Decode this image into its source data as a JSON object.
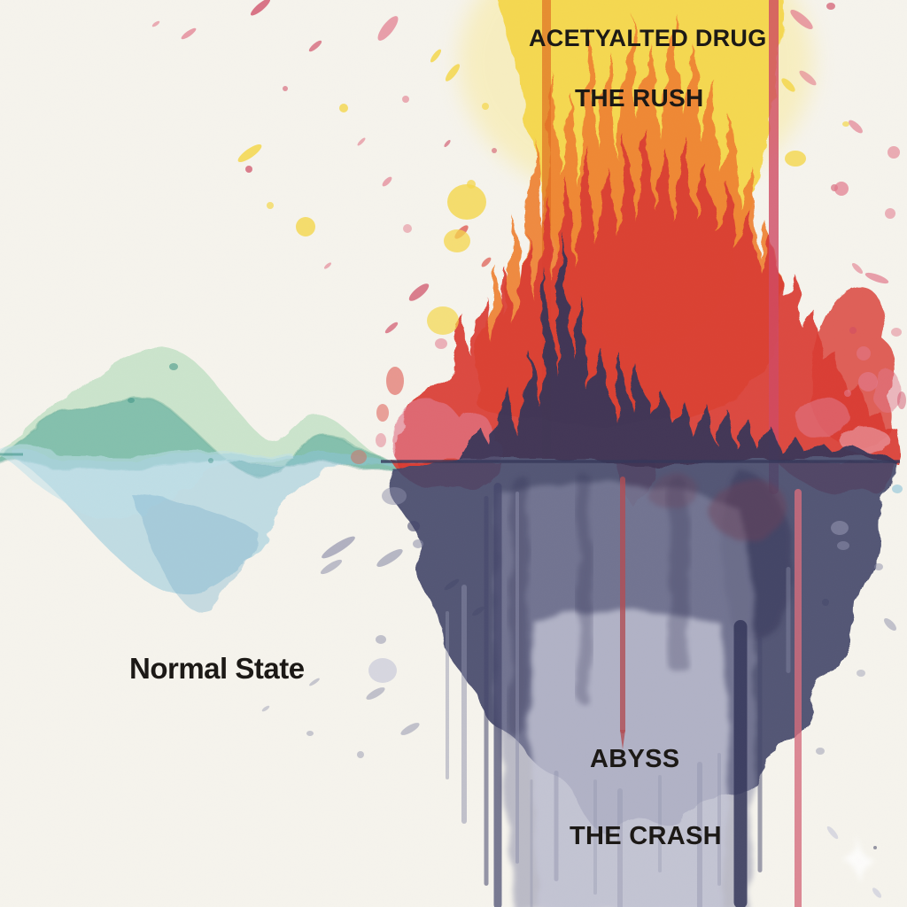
{
  "labels": {
    "drug_title": "ACETYALTED DRUG",
    "rush": "THE RUSH",
    "normal_state": "Normal State",
    "abyss": "ABYSS",
    "crash": "THE CRASH"
  },
  "regions": [
    {
      "name": "normal-state-waves",
      "label": "Normal State",
      "description": "calm overlapping green, teal and blue watercolor waves along the baseline"
    },
    {
      "name": "rush-explosion",
      "heading": "ACETYALTED DRUG",
      "label": "THE RUSH",
      "description": "red, orange and yellow watercolor burst rising above the baseline with splatter and vertical paint streaks"
    },
    {
      "name": "crash-abyss",
      "label": "THE CRASH",
      "sublabel": "ABYSS",
      "description": "dark indigo watercolor mass plunging below the baseline with drips and splatter"
    }
  ],
  "icons": {
    "watermark": "four-point-sparkle"
  },
  "colors": {
    "paper": "#f6f4ed",
    "ink": "#1c1916",
    "yellow": "#f5d74b",
    "yellow_light": "#fae88d",
    "orange": "#ef8233",
    "orange_deep": "#e06d22",
    "red": "#da3a31",
    "red_drip": "#b24c52",
    "crimson": "#cf4a63",
    "pink": "#e2798c",
    "pink_light": "#eda6b2",
    "pink_drip": "#d66d7d",
    "rose_brown": "#b98a7e",
    "maroon": "#6e4059",
    "indigo": "#434569",
    "indigo_deep": "#343659",
    "slate": "#8c8ea9",
    "lavender": "#c6c7d8",
    "green_light": "#9fd6ab",
    "teal": "#3e9c8d",
    "teal_dark": "#2f8a7c",
    "blue": "#8cc3d9",
    "blue_pale": "#c0e0ea",
    "blue_deep": "#7db5cf",
    "white": "#ffffff"
  }
}
